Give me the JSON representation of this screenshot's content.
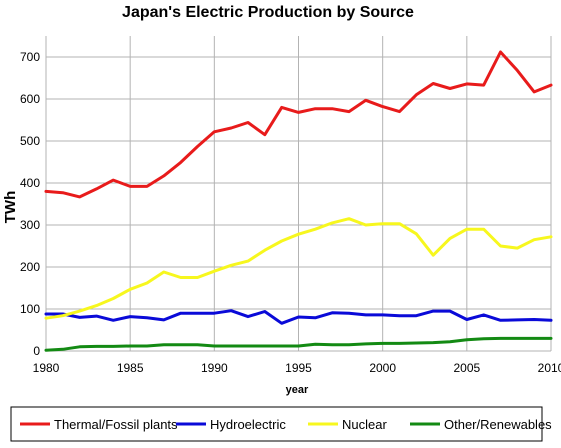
{
  "chart_data": {
    "type": "line",
    "title": "Japan's Electric Production by Source",
    "xlabel": "year",
    "ylabel": "TWh",
    "xlim": [
      1980,
      2010
    ],
    "ylim": [
      0,
      750
    ],
    "x_ticks": [
      1980,
      1985,
      1990,
      1995,
      2000,
      2005,
      2010
    ],
    "y_ticks": [
      0,
      100,
      200,
      300,
      400,
      500,
      600,
      700
    ],
    "grid": true,
    "legend_position": "bottom",
    "x": [
      1980,
      1981,
      1982,
      1983,
      1984,
      1985,
      1986,
      1987,
      1988,
      1989,
      1990,
      1991,
      1992,
      1993,
      1994,
      1995,
      1996,
      1997,
      1998,
      1999,
      2000,
      2001,
      2002,
      2003,
      2004,
      2005,
      2006,
      2007,
      2008,
      2009,
      2010
    ],
    "series": [
      {
        "name": "Thermal/Fossil plants",
        "color": "#e81b1b",
        "values": [
          380,
          377,
          367,
          386,
          407,
          392,
          392,
          417,
          449,
          487,
          522,
          531,
          544,
          515,
          580,
          568,
          577,
          577,
          570,
          597,
          582,
          570,
          610,
          637,
          625,
          636,
          633,
          712,
          668,
          617,
          633
        ]
      },
      {
        "name": "Hydroelectric",
        "color": "#0a0ad8",
        "values": [
          88,
          88,
          80,
          83,
          73,
          82,
          79,
          74,
          90,
          90,
          90,
          96,
          82,
          94,
          66,
          81,
          79,
          91,
          90,
          86,
          86,
          84,
          84,
          95,
          95,
          75,
          86,
          73,
          74,
          75,
          73
        ]
      },
      {
        "name": "Nuclear",
        "color": "#f7f71e",
        "values": [
          78,
          84,
          95,
          108,
          125,
          147,
          162,
          188,
          175,
          175,
          190,
          204,
          214,
          240,
          262,
          278,
          290,
          305,
          315,
          300,
          303,
          303,
          279,
          228,
          268,
          290,
          290,
          250,
          245,
          265,
          272
        ]
      },
      {
        "name": "Other/Renewables",
        "color": "#138a13",
        "values": [
          2,
          4,
          10,
          11,
          11,
          12,
          12,
          15,
          15,
          15,
          12,
          12,
          12,
          12,
          12,
          12,
          16,
          15,
          15,
          17,
          18,
          18,
          19,
          20,
          22,
          27,
          29,
          30,
          30,
          30,
          30
        ]
      }
    ]
  }
}
